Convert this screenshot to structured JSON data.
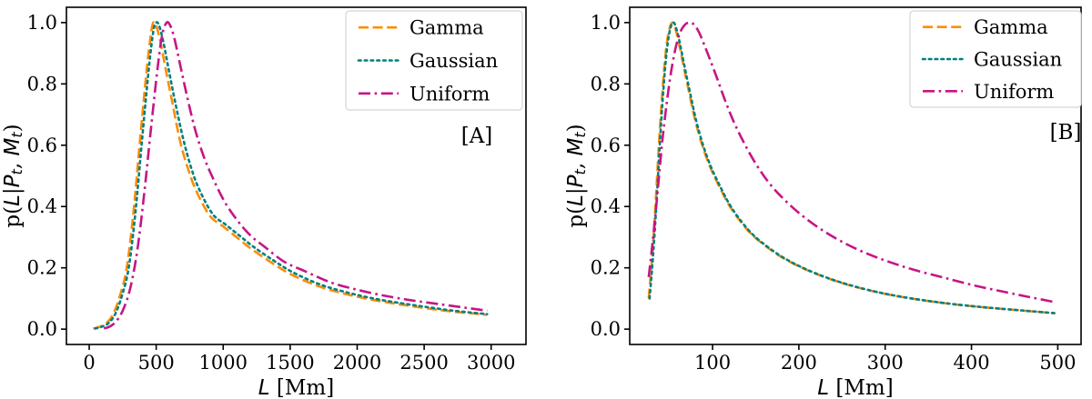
{
  "figure": {
    "background": "#ffffff",
    "axis_color": "#000000",
    "legend_border_color": "#d5d5d5",
    "legend_background": "#ffffff"
  },
  "chart_data": [
    {
      "type": "line",
      "panel_tag": "[A]",
      "panel_tag_color": "#9b1717",
      "xlabel": "L [Mm]",
      "ylabel": "p(L|P_t, M_t)",
      "xlim": [
        -170,
        3260
      ],
      "ylim": [
        -0.05,
        1.05
      ],
      "xticks": [
        0,
        500,
        1000,
        1500,
        2000,
        2500,
        3000
      ],
      "yticks": [
        "0.0",
        "0.2",
        "0.4",
        "0.6",
        "0.8",
        "1.0"
      ],
      "grid": false,
      "legend_position": "upper right",
      "legend_labels": [
        "Gamma",
        "Gaussian",
        "Uniform"
      ],
      "series": [
        {
          "name": "Gamma",
          "color": "#FF8C00",
          "dash": "dashed",
          "points": [
            [
              30,
              0.002
            ],
            [
              80,
              0.008
            ],
            [
              130,
              0.02
            ],
            [
              180,
              0.05
            ],
            [
              230,
              0.11
            ],
            [
              280,
              0.2
            ],
            [
              330,
              0.38
            ],
            [
              380,
              0.62
            ],
            [
              430,
              0.85
            ],
            [
              460,
              0.96
            ],
            [
              478,
              1.0
            ],
            [
              500,
              0.99
            ],
            [
              530,
              0.94
            ],
            [
              570,
              0.85
            ],
            [
              620,
              0.74
            ],
            [
              680,
              0.61
            ],
            [
              740,
              0.52
            ],
            [
              800,
              0.45
            ],
            [
              900,
              0.37
            ],
            [
              1000,
              0.335
            ],
            [
              1100,
              0.3
            ],
            [
              1200,
              0.265
            ],
            [
              1350,
              0.22
            ],
            [
              1500,
              0.18
            ],
            [
              1700,
              0.142
            ],
            [
              1900,
              0.116
            ],
            [
              2100,
              0.097
            ],
            [
              2300,
              0.082
            ],
            [
              2500,
              0.069
            ],
            [
              2700,
              0.058
            ],
            [
              2970,
              0.047
            ]
          ]
        },
        {
          "name": "Gaussian",
          "color": "#008080",
          "dash": "dotted",
          "points": [
            [
              45,
              0.002
            ],
            [
              95,
              0.008
            ],
            [
              145,
              0.02
            ],
            [
              195,
              0.05
            ],
            [
              245,
              0.11
            ],
            [
              295,
              0.2
            ],
            [
              345,
              0.38
            ],
            [
              395,
              0.62
            ],
            [
              445,
              0.85
            ],
            [
              478,
              0.97
            ],
            [
              500,
              1.0
            ],
            [
              522,
              0.99
            ],
            [
              552,
              0.94
            ],
            [
              592,
              0.85
            ],
            [
              642,
              0.74
            ],
            [
              702,
              0.62
            ],
            [
              762,
              0.525
            ],
            [
              822,
              0.455
            ],
            [
              922,
              0.375
            ],
            [
              1022,
              0.34
            ],
            [
              1122,
              0.305
            ],
            [
              1222,
              0.27
            ],
            [
              1372,
              0.225
            ],
            [
              1522,
              0.185
            ],
            [
              1722,
              0.146
            ],
            [
              1922,
              0.12
            ],
            [
              2122,
              0.1
            ],
            [
              2322,
              0.085
            ],
            [
              2522,
              0.072
            ],
            [
              2722,
              0.06
            ],
            [
              2970,
              0.049
            ]
          ]
        },
        {
          "name": "Uniform",
          "color": "#C71585",
          "dash": "dashdot",
          "points": [
            [
              110,
              0.002
            ],
            [
              160,
              0.01
            ],
            [
              210,
              0.03
            ],
            [
              260,
              0.07
            ],
            [
              310,
              0.14
            ],
            [
              360,
              0.26
            ],
            [
              410,
              0.44
            ],
            [
              460,
              0.65
            ],
            [
              510,
              0.85
            ],
            [
              545,
              0.96
            ],
            [
              578,
              1.0
            ],
            [
              605,
              0.99
            ],
            [
              635,
              0.95
            ],
            [
              675,
              0.87
            ],
            [
              725,
              0.77
            ],
            [
              785,
              0.66
            ],
            [
              845,
              0.575
            ],
            [
              905,
              0.51
            ],
            [
              1005,
              0.42
            ],
            [
              1105,
              0.355
            ],
            [
              1205,
              0.305
            ],
            [
              1305,
              0.27
            ],
            [
              1455,
              0.22
            ],
            [
              1605,
              0.19
            ],
            [
              1805,
              0.152
            ],
            [
              2005,
              0.128
            ],
            [
              2205,
              0.109
            ],
            [
              2405,
              0.094
            ],
            [
              2605,
              0.082
            ],
            [
              2805,
              0.07
            ],
            [
              2970,
              0.06
            ]
          ]
        }
      ]
    },
    {
      "type": "line",
      "panel_tag": "[B]",
      "panel_tag_color": "#9b1717",
      "xlabel": "L [Mm]",
      "ylabel": "p(L|P_t, M_t)",
      "xlim": [
        4,
        527
      ],
      "ylim": [
        -0.05,
        1.05
      ],
      "xticks": [
        100,
        200,
        300,
        400,
        500
      ],
      "yticks": [
        "0.0",
        "0.2",
        "0.4",
        "0.6",
        "0.8",
        "1.0"
      ],
      "grid": false,
      "legend_position": "upper right",
      "legend_labels": [
        "Gamma",
        "Gaussian",
        "Uniform"
      ],
      "series": [
        {
          "name": "Gamma",
          "color": "#FF8C00",
          "dash": "dashed",
          "points": [
            [
              26,
              0.1
            ],
            [
              29,
              0.2
            ],
            [
              32,
              0.32
            ],
            [
              35,
              0.46
            ],
            [
              38,
              0.61
            ],
            [
              42,
              0.78
            ],
            [
              46,
              0.91
            ],
            [
              50,
              0.98
            ],
            [
              54,
              1.0
            ],
            [
              58,
              0.97
            ],
            [
              62,
              0.92
            ],
            [
              67,
              0.85
            ],
            [
              73,
              0.77
            ],
            [
              80,
              0.68
            ],
            [
              88,
              0.6
            ],
            [
              97,
              0.53
            ],
            [
              107,
              0.47
            ],
            [
              118,
              0.41
            ],
            [
              130,
              0.36
            ],
            [
              145,
              0.31
            ],
            [
              162,
              0.27
            ],
            [
              180,
              0.235
            ],
            [
              200,
              0.205
            ],
            [
              222,
              0.178
            ],
            [
              246,
              0.154
            ],
            [
              272,
              0.133
            ],
            [
              300,
              0.115
            ],
            [
              330,
              0.1
            ],
            [
              365,
              0.086
            ],
            [
              400,
              0.075
            ],
            [
              440,
              0.065
            ],
            [
              497,
              0.052
            ]
          ]
        },
        {
          "name": "Gaussian",
          "color": "#008080",
          "dash": "dotted",
          "points": [
            [
              27,
              0.1
            ],
            [
              30,
              0.2
            ],
            [
              33,
              0.32
            ],
            [
              36,
              0.46
            ],
            [
              39,
              0.61
            ],
            [
              43,
              0.78
            ],
            [
              47,
              0.91
            ],
            [
              51,
              0.98
            ],
            [
              55,
              1.0
            ],
            [
              59,
              0.97
            ],
            [
              63,
              0.92
            ],
            [
              68,
              0.85
            ],
            [
              74,
              0.77
            ],
            [
              81,
              0.68
            ],
            [
              89,
              0.6
            ],
            [
              98,
              0.53
            ],
            [
              108,
              0.47
            ],
            [
              119,
              0.41
            ],
            [
              131,
              0.36
            ],
            [
              146,
              0.31
            ],
            [
              163,
              0.27
            ],
            [
              181,
              0.235
            ],
            [
              201,
              0.205
            ],
            [
              223,
              0.178
            ],
            [
              247,
              0.154
            ],
            [
              273,
              0.133
            ],
            [
              301,
              0.115
            ],
            [
              331,
              0.1
            ],
            [
              366,
              0.086
            ],
            [
              401,
              0.075
            ],
            [
              441,
              0.065
            ],
            [
              497,
              0.052
            ]
          ]
        },
        {
          "name": "Uniform",
          "color": "#C71585",
          "dash": "dashdot",
          "points": [
            [
              26,
              0.17
            ],
            [
              30,
              0.27
            ],
            [
              34,
              0.38
            ],
            [
              38,
              0.5
            ],
            [
              42,
              0.62
            ],
            [
              47,
              0.74
            ],
            [
              52,
              0.84
            ],
            [
              57,
              0.915
            ],
            [
              62,
              0.965
            ],
            [
              67,
              0.99
            ],
            [
              72,
              1.0
            ],
            [
              78,
              0.995
            ],
            [
              84,
              0.97
            ],
            [
              90,
              0.93
            ],
            [
              97,
              0.88
            ],
            [
              105,
              0.82
            ],
            [
              114,
              0.75
            ],
            [
              124,
              0.68
            ],
            [
              136,
              0.61
            ],
            [
              150,
              0.54
            ],
            [
              166,
              0.475
            ],
            [
              184,
              0.42
            ],
            [
              204,
              0.37
            ],
            [
              226,
              0.325
            ],
            [
              250,
              0.285
            ],
            [
              276,
              0.25
            ],
            [
              304,
              0.22
            ],
            [
              334,
              0.193
            ],
            [
              368,
              0.168
            ],
            [
              404,
              0.142
            ],
            [
              444,
              0.118
            ],
            [
              470,
              0.103
            ],
            [
              497,
              0.088
            ]
          ]
        }
      ]
    }
  ]
}
